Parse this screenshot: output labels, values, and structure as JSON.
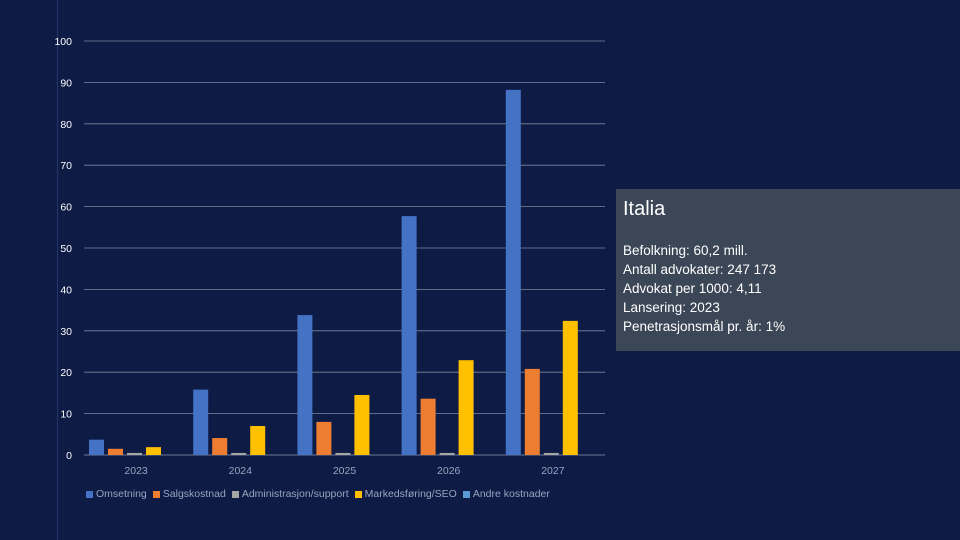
{
  "chart_data": {
    "type": "bar",
    "title": "",
    "xlabel": "",
    "ylabel": "",
    "ylim": [
      0,
      100
    ],
    "yticks": [
      0,
      10,
      20,
      30,
      40,
      50,
      60,
      70,
      80,
      90,
      100
    ],
    "categories": [
      "2023",
      "2024",
      "2025",
      "2026",
      "2027"
    ],
    "series": [
      {
        "name": "Omsetning",
        "color": "#4472c4",
        "values": [
          3.7,
          15.8,
          33.8,
          57.7,
          88.2
        ]
      },
      {
        "name": "Salgskostnad",
        "color": "#ed7d31",
        "values": [
          1.5,
          4.1,
          8.0,
          13.6,
          20.8
        ]
      },
      {
        "name": "Administrasjon/support",
        "color": "#a5a5a5",
        "values": [
          0.5,
          0.5,
          0.5,
          0.5,
          0.5
        ]
      },
      {
        "name": "Markedsføring/SEO",
        "color": "#ffc000",
        "values": [
          1.9,
          7.0,
          14.5,
          22.9,
          32.4
        ]
      },
      {
        "name": "Andre kostnader",
        "color": "#5b9bd5",
        "values": [
          0,
          0,
          0,
          0,
          0
        ]
      }
    ],
    "legend_position": "bottom",
    "grid": true
  },
  "info": {
    "title": "Italia",
    "lines": [
      "Befolkning: 60,2 mill.",
      "Antall advokater: 247 173",
      "Advokat per 1000: 4,11",
      "Lansering: 2023",
      "Penetrasjonsmål pr. år: 1%"
    ]
  }
}
